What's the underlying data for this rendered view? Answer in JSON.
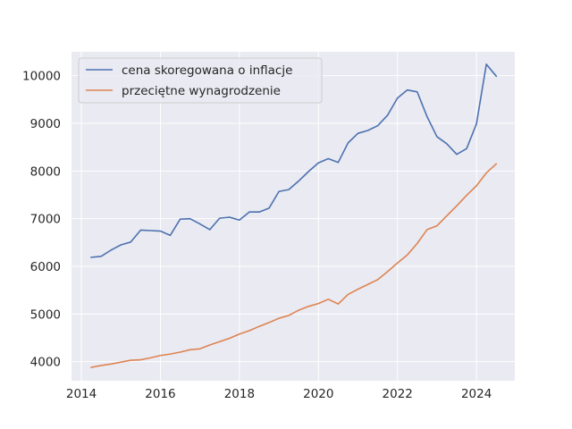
{
  "chart_data": {
    "type": "line",
    "title": "",
    "xlabel": "",
    "ylabel": "",
    "xlim": [
      2013.75,
      2024.97
    ],
    "ylim": [
      3600,
      10500
    ],
    "grid": true,
    "legend_position": "upper-left",
    "x_ticks": [
      2014,
      2016,
      2018,
      2020,
      2022,
      2024
    ],
    "x_tick_labels": [
      "2014",
      "2016",
      "2018",
      "2020",
      "2022",
      "2024"
    ],
    "y_ticks": [
      4000,
      5000,
      6000,
      7000,
      8000,
      9000,
      10000
    ],
    "y_tick_labels": [
      "4000",
      "5000",
      "6000",
      "7000",
      "8000",
      "9000",
      "10000"
    ],
    "series": [
      {
        "name": "cena skoregowana o inflacje",
        "color": "#4c72b0",
        "points": [
          [
            2014.25,
            6190
          ],
          [
            2014.5,
            6210
          ],
          [
            2014.75,
            6340
          ],
          [
            2015.0,
            6450
          ],
          [
            2015.25,
            6510
          ],
          [
            2015.5,
            6760
          ],
          [
            2015.75,
            6750
          ],
          [
            2016.0,
            6740
          ],
          [
            2016.25,
            6650
          ],
          [
            2016.5,
            6990
          ],
          [
            2016.75,
            7000
          ],
          [
            2017.0,
            6890
          ],
          [
            2017.25,
            6770
          ],
          [
            2017.5,
            7010
          ],
          [
            2017.75,
            7030
          ],
          [
            2018.0,
            6970
          ],
          [
            2018.25,
            7140
          ],
          [
            2018.5,
            7140
          ],
          [
            2018.75,
            7220
          ],
          [
            2019.0,
            7570
          ],
          [
            2019.25,
            7610
          ],
          [
            2019.5,
            7790
          ],
          [
            2019.75,
            7990
          ],
          [
            2020.0,
            8170
          ],
          [
            2020.25,
            8260
          ],
          [
            2020.5,
            8180
          ],
          [
            2020.75,
            8590
          ],
          [
            2021.0,
            8790
          ],
          [
            2021.25,
            8850
          ],
          [
            2021.5,
            8950
          ],
          [
            2021.75,
            9170
          ],
          [
            2022.0,
            9530
          ],
          [
            2022.25,
            9700
          ],
          [
            2022.5,
            9660
          ],
          [
            2022.75,
            9140
          ],
          [
            2023.0,
            8720
          ],
          [
            2023.25,
            8570
          ],
          [
            2023.5,
            8350
          ],
          [
            2023.75,
            8470
          ],
          [
            2024.0,
            8990
          ],
          [
            2024.25,
            10240
          ],
          [
            2024.5,
            9990
          ]
        ]
      },
      {
        "name": "przeciętne wynagrodzenie",
        "color": "#dd8452",
        "points": [
          [
            2014.25,
            3880
          ],
          [
            2014.5,
            3920
          ],
          [
            2014.75,
            3950
          ],
          [
            2015.0,
            3990
          ],
          [
            2015.25,
            4030
          ],
          [
            2015.5,
            4040
          ],
          [
            2015.75,
            4080
          ],
          [
            2016.0,
            4130
          ],
          [
            2016.25,
            4160
          ],
          [
            2016.5,
            4200
          ],
          [
            2016.75,
            4250
          ],
          [
            2017.0,
            4270
          ],
          [
            2017.25,
            4350
          ],
          [
            2017.5,
            4420
          ],
          [
            2017.75,
            4490
          ],
          [
            2018.0,
            4580
          ],
          [
            2018.25,
            4650
          ],
          [
            2018.5,
            4740
          ],
          [
            2018.75,
            4820
          ],
          [
            2019.0,
            4910
          ],
          [
            2019.25,
            4970
          ],
          [
            2019.5,
            5080
          ],
          [
            2019.75,
            5160
          ],
          [
            2020.0,
            5220
          ],
          [
            2020.25,
            5310
          ],
          [
            2020.5,
            5210
          ],
          [
            2020.75,
            5410
          ],
          [
            2021.0,
            5520
          ],
          [
            2021.25,
            5620
          ],
          [
            2021.5,
            5720
          ],
          [
            2021.75,
            5890
          ],
          [
            2022.0,
            6070
          ],
          [
            2022.25,
            6240
          ],
          [
            2022.5,
            6480
          ],
          [
            2022.75,
            6770
          ],
          [
            2023.0,
            6850
          ],
          [
            2023.25,
            7060
          ],
          [
            2023.5,
            7270
          ],
          [
            2023.75,
            7490
          ],
          [
            2024.0,
            7690
          ],
          [
            2024.25,
            7960
          ],
          [
            2024.5,
            8150
          ]
        ]
      }
    ]
  }
}
